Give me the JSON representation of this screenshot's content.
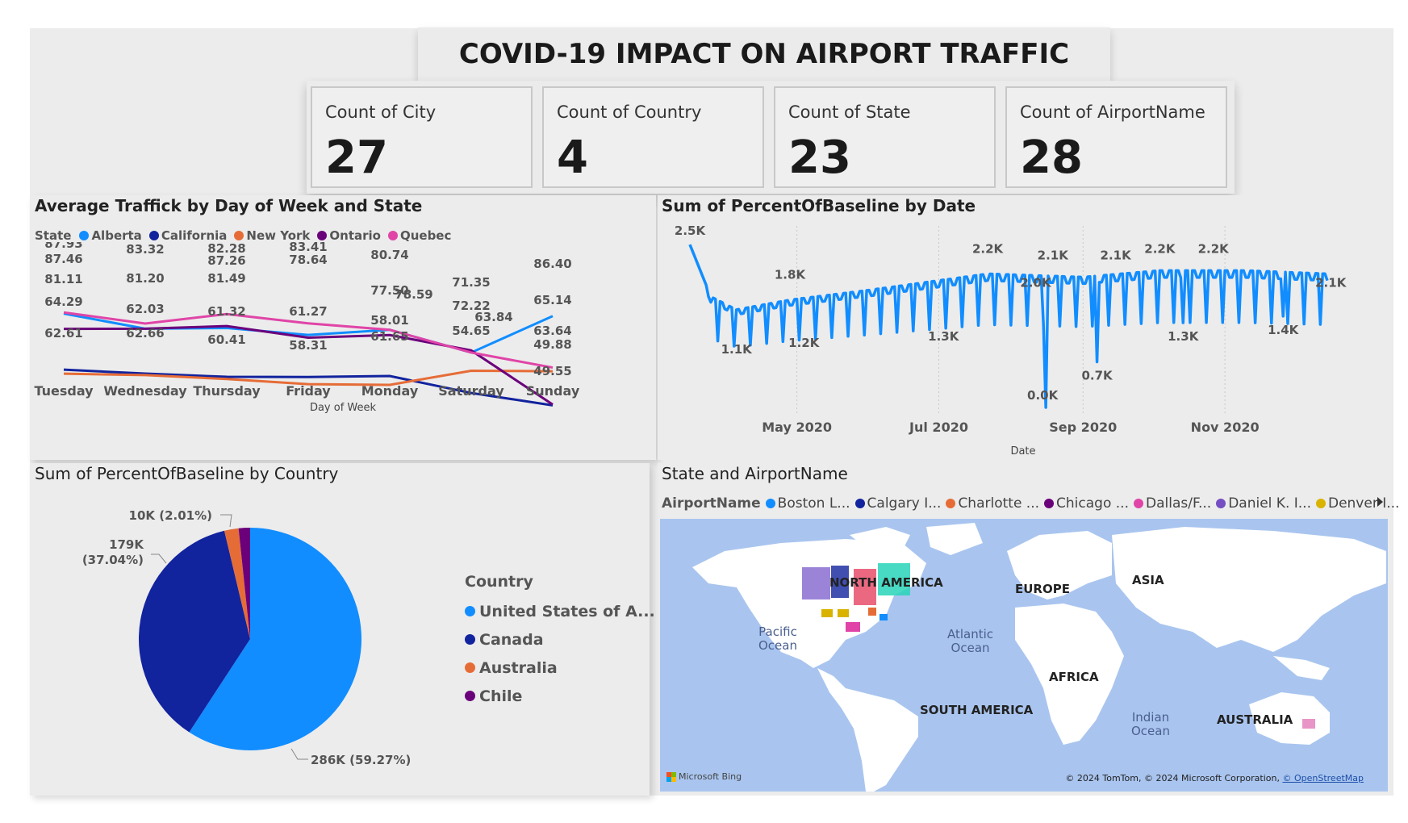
{
  "title": "COVID-19 IMPACT ON AIRPORT TRAFFIC",
  "cards": [
    {
      "label": "Count of City",
      "value": "27"
    },
    {
      "label": "Count of Country",
      "value": "4"
    },
    {
      "label": "Count of State",
      "value": "23"
    },
    {
      "label": "Count of AirportName",
      "value": "28"
    }
  ],
  "colors": {
    "alberta": "#118dff",
    "california": "#12239e",
    "new_york": "#e66c37",
    "ontario": "#6b007b",
    "quebec": "#e044a7",
    "usa": "#118dff",
    "canada": "#12239e",
    "australia": "#e66c37",
    "chile": "#6b007b"
  },
  "line_chart": {
    "title": "Average Traffick by Day of Week and State",
    "legend_title": "State",
    "xlabel": "Day of Week"
  },
  "date_chart": {
    "title": "Sum of PercentOfBaseline by Date",
    "xlabel": "Date"
  },
  "pie_chart": {
    "title": "Sum of PercentOfBaseline by Country",
    "legend_title": "Country",
    "legend_labels": [
      "United States of A...",
      "Canada",
      "Australia",
      "Chile"
    ],
    "slice_labels": [
      "286K (59.27%)",
      "179K",
      "(37.04%)",
      "10K (2.01%)"
    ]
  },
  "map": {
    "title": "State and AirportName",
    "legend_title": "AirportName",
    "legend_items": [
      "Boston L...",
      "Calgary I...",
      "Charlotte ...",
      "Chicago ...",
      "Dallas/F...",
      "Daniel K. I...",
      "Denver I..."
    ],
    "legend_colors": [
      "#118dff",
      "#12239e",
      "#e66c37",
      "#6b007b",
      "#e044a7",
      "#744ec2",
      "#d9b300"
    ],
    "continents": [
      "NORTH AMERICA",
      "EUROPE",
      "ASIA",
      "AFRICA",
      "SOUTH AMERICA",
      "AUSTRALIA"
    ],
    "oceans": [
      "Pacific",
      "Ocean",
      "Atlantic",
      "Ocean",
      "Indian",
      "Ocean"
    ],
    "attribution": "Microsoft Bing",
    "copyright": "© 2024 TomTom, © 2024 Microsoft Corporation,",
    "copyright_link": "© OpenStreetMap"
  },
  "chart_data": [
    {
      "type": "line",
      "title": "Average Traffick by Day of Week and State",
      "xlabel": "Day of Week",
      "ylabel": "",
      "categories": [
        "Tuesday",
        "Wednesday",
        "Thursday",
        "Friday",
        "Monday",
        "Saturday",
        "Sunday"
      ],
      "series": [
        {
          "name": "Alberta",
          "values": [
            87.46,
            81.2,
            81.49,
            78.64,
            80.74,
            71.35,
            86.4
          ]
        },
        {
          "name": "California",
          "values": [
            64.29,
            62.66,
            61.32,
            61.27,
            61.65,
            54.65,
            49.55
          ]
        },
        {
          "name": "New York",
          "values": [
            62.61,
            62.03,
            60.41,
            58.31,
            58.01,
            63.84,
            63.64
          ]
        },
        {
          "name": "Ontario",
          "values": [
            81.11,
            81.2,
            82.28,
            77.5,
            78.59,
            72.22,
            49.88
          ]
        },
        {
          "name": "Quebec",
          "values": [
            87.93,
            83.32,
            87.26,
            83.41,
            80.74,
            71.35,
            65.14
          ]
        }
      ],
      "data_labels": [
        "87.93",
        "87.46",
        "81.11",
        "64.29",
        "62.61",
        "83.32",
        "81.20",
        "62.03",
        "62.66",
        "82.28",
        "87.26",
        "81.49",
        "61.32",
        "60.41",
        "83.41",
        "78.64",
        "61.27",
        "58.31",
        "80.74",
        "78.59",
        "77.50",
        "58.01",
        "61.65",
        "71.35",
        "72.22",
        "63.84",
        "54.65",
        "86.40",
        "65.14",
        "63.64",
        "49.88",
        "49.55"
      ],
      "ylim": [
        45,
        92
      ],
      "legend": "top"
    },
    {
      "type": "line",
      "title": "Sum of PercentOfBaseline by Date",
      "xlabel": "Date",
      "ylabel": "",
      "x_ticks": [
        "May 2020",
        "Jul 2020",
        "Sep 2020",
        "Nov 2020"
      ],
      "x_range": [
        "2020-03-16",
        "2020-12-15"
      ],
      "anchor_points": [
        {
          "date": "2020-03-16",
          "value": 2500,
          "label": "2.5K"
        },
        {
          "date": "2020-04-05",
          "value": 1100,
          "label": "1.1K"
        },
        {
          "date": "2020-04-28",
          "value": 1800,
          "label": "1.8K"
        },
        {
          "date": "2020-05-04",
          "value": 1200,
          "label": "1.2K"
        },
        {
          "date": "2020-07-03",
          "value": 1300,
          "label": "1.3K"
        },
        {
          "date": "2020-07-22",
          "value": 2200,
          "label": "2.2K"
        },
        {
          "date": "2020-08-13",
          "value": 2000,
          "label": "2.0K"
        },
        {
          "date": "2020-08-16",
          "value": 0,
          "label": "0.0K"
        },
        {
          "date": "2020-08-19",
          "value": 2100,
          "label": "2.1K"
        },
        {
          "date": "2020-09-07",
          "value": 700,
          "label": "0.7K"
        },
        {
          "date": "2020-09-15",
          "value": 2100,
          "label": "2.1K"
        },
        {
          "date": "2020-10-04",
          "value": 2200,
          "label": "2.2K"
        },
        {
          "date": "2020-10-14",
          "value": 1300,
          "label": "1.3K"
        },
        {
          "date": "2020-10-27",
          "value": 2200,
          "label": "2.2K"
        },
        {
          "date": "2020-11-26",
          "value": 1400,
          "label": "1.4K"
        },
        {
          "date": "2020-12-13",
          "value": 2100,
          "label": "2.1K"
        }
      ],
      "ylim": [
        0,
        2600
      ],
      "grid": "vertical"
    },
    {
      "type": "pie",
      "title": "Sum of PercentOfBaseline by Country",
      "categories": [
        "United States of America",
        "Canada",
        "Australia",
        "Chile"
      ],
      "values": [
        286000,
        179000,
        10000,
        8000
      ],
      "percentages": [
        59.27,
        37.04,
        2.01,
        1.68
      ],
      "legend": "right"
    }
  ]
}
